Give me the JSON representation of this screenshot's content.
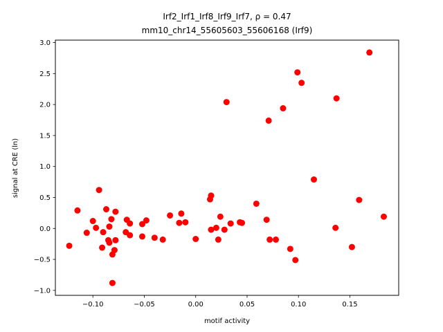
{
  "chart_data": {
    "type": "scatter",
    "title_line1": "Irf2_Irf1_Irf8_Irf9_Irf7, ρ = 0.47",
    "title_line2": "mm10_chr14_55605603_55606168 (Irf9)",
    "xlabel": "motif activity",
    "ylabel": "signal at CRE (ln)",
    "xlim": [
      -0.1365,
      0.1975
    ],
    "ylim": [
      -1.08,
      3.04
    ],
    "xticks": [
      -0.1,
      -0.05,
      0.0,
      0.05,
      0.1,
      0.15
    ],
    "xtick_labels": [
      "−0.10",
      "−0.05",
      "0.00",
      "0.05",
      "0.10",
      "0.15"
    ],
    "yticks": [
      -1.0,
      -0.5,
      0.0,
      0.5,
      1.0,
      1.5,
      2.0,
      2.5,
      3.0
    ],
    "ytick_labels": [
      "−1.0",
      "−0.5",
      "0.0",
      "0.5",
      "1.0",
      "1.5",
      "2.0",
      "2.5",
      "3.0"
    ],
    "grid": false,
    "marker_color": "#ff0000",
    "points": [
      {
        "x": -0.123,
        "y": -0.28
      },
      {
        "x": -0.115,
        "y": 0.29
      },
      {
        "x": -0.106,
        "y": -0.07
      },
      {
        "x": -0.1,
        "y": 0.12
      },
      {
        "x": -0.097,
        "y": 0.01
      },
      {
        "x": -0.094,
        "y": 0.62
      },
      {
        "x": -0.091,
        "y": -0.31
      },
      {
        "x": -0.09,
        "y": -0.06
      },
      {
        "x": -0.087,
        "y": 0.31
      },
      {
        "x": -0.085,
        "y": -0.19
      },
      {
        "x": -0.084,
        "y": -0.23
      },
      {
        "x": -0.084,
        "y": 0.03
      },
      {
        "x": -0.082,
        "y": 0.15
      },
      {
        "x": -0.081,
        "y": -0.42
      },
      {
        "x": -0.081,
        "y": -0.88
      },
      {
        "x": -0.079,
        "y": -0.35
      },
      {
        "x": -0.078,
        "y": -0.19
      },
      {
        "x": -0.078,
        "y": 0.27
      },
      {
        "x": -0.068,
        "y": -0.06
      },
      {
        "x": -0.067,
        "y": 0.14
      },
      {
        "x": -0.064,
        "y": 0.08
      },
      {
        "x": -0.064,
        "y": -0.11
      },
      {
        "x": -0.052,
        "y": 0.07
      },
      {
        "x": -0.052,
        "y": -0.13
      },
      {
        "x": -0.048,
        "y": 0.13
      },
      {
        "x": -0.04,
        "y": -0.15
      },
      {
        "x": -0.032,
        "y": -0.18
      },
      {
        "x": -0.025,
        "y": 0.21
      },
      {
        "x": -0.016,
        "y": 0.09
      },
      {
        "x": -0.014,
        "y": 0.24
      },
      {
        "x": -0.01,
        "y": 0.1
      },
      {
        "x": 0.0,
        "y": -0.17
      },
      {
        "x": 0.014,
        "y": 0.47
      },
      {
        "x": 0.015,
        "y": 0.53
      },
      {
        "x": 0.015,
        "y": -0.02
      },
      {
        "x": 0.02,
        "y": 0.01
      },
      {
        "x": 0.022,
        "y": -0.18
      },
      {
        "x": 0.024,
        "y": 0.19
      },
      {
        "x": 0.028,
        "y": -0.02
      },
      {
        "x": 0.03,
        "y": 2.04
      },
      {
        "x": 0.034,
        "y": 0.08
      },
      {
        "x": 0.043,
        "y": 0.1
      },
      {
        "x": 0.045,
        "y": 0.09
      },
      {
        "x": 0.059,
        "y": 0.4
      },
      {
        "x": 0.069,
        "y": 0.14
      },
      {
        "x": 0.071,
        "y": 1.74
      },
      {
        "x": 0.072,
        "y": -0.18
      },
      {
        "x": 0.078,
        "y": -0.18
      },
      {
        "x": 0.085,
        "y": 1.94
      },
      {
        "x": 0.092,
        "y": -0.33
      },
      {
        "x": 0.097,
        "y": -0.51
      },
      {
        "x": 0.099,
        "y": 2.52
      },
      {
        "x": 0.103,
        "y": 2.35
      },
      {
        "x": 0.115,
        "y": 0.79
      },
      {
        "x": 0.136,
        "y": 0.01
      },
      {
        "x": 0.137,
        "y": 2.1
      },
      {
        "x": 0.152,
        "y": -0.3
      },
      {
        "x": 0.159,
        "y": 0.46
      },
      {
        "x": 0.169,
        "y": 2.84
      },
      {
        "x": 0.183,
        "y": 0.19
      }
    ]
  }
}
